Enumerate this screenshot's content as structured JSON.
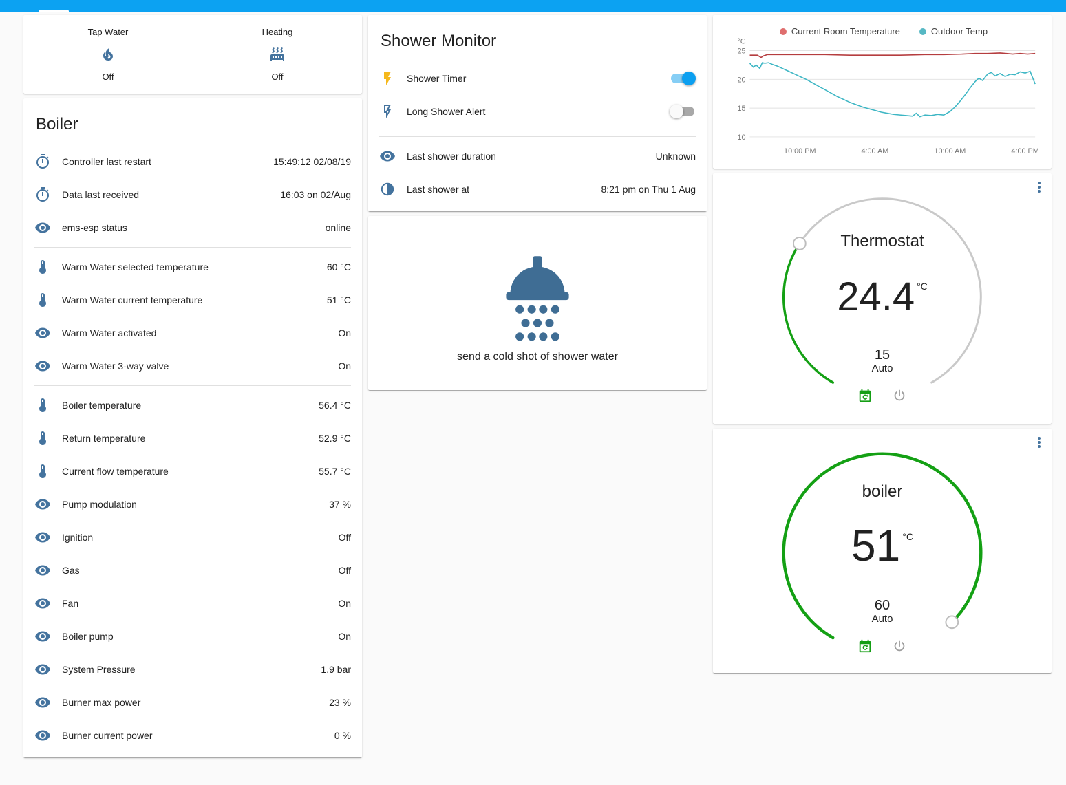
{
  "colors": {
    "header_blue": "#0ca2f2",
    "icon_blue": "#44739e",
    "toggle_on": "#0b9ff0",
    "toggle_on_track": "#86cef5",
    "gauge_green": "#14a014",
    "action_green": "#149e14",
    "bolt_yellow": "#f5b81c"
  },
  "glance_card": {
    "items": [
      {
        "name": "Tap Water",
        "icon": "fire",
        "state": "Off"
      },
      {
        "name": "Heating",
        "icon": "radiator",
        "state": "Off"
      }
    ]
  },
  "boiler_card": {
    "title": "Boiler",
    "sections": [
      {
        "rows": [
          {
            "icon": "timer",
            "label": "Controller last restart",
            "value": "15:49:12 02/08/19"
          },
          {
            "icon": "timer",
            "label": "Data last received",
            "value": "16:03 on 02/Aug"
          },
          {
            "icon": "eye",
            "label": "ems-esp status",
            "value": "online"
          }
        ]
      },
      {
        "rows": [
          {
            "icon": "thermometer",
            "label": "Warm Water selected temperature",
            "value": "60 °C"
          },
          {
            "icon": "thermometer",
            "label": "Warm Water current temperature",
            "value": "51 °C"
          },
          {
            "icon": "eye",
            "label": "Warm Water activated",
            "value": "On"
          },
          {
            "icon": "eye",
            "label": "Warm Water 3-way valve",
            "value": "On"
          }
        ]
      },
      {
        "rows": [
          {
            "icon": "thermometer",
            "label": "Boiler temperature",
            "value": "56.4 °C"
          },
          {
            "icon": "thermometer",
            "label": "Return temperature",
            "value": "52.9 °C"
          },
          {
            "icon": "thermometer",
            "label": "Current flow temperature",
            "value": "55.7 °C"
          },
          {
            "icon": "eye",
            "label": "Pump modulation",
            "value": "37 %"
          },
          {
            "icon": "eye",
            "label": "Ignition",
            "value": "Off"
          },
          {
            "icon": "eye",
            "label": "Gas",
            "value": "Off"
          },
          {
            "icon": "eye",
            "label": "Fan",
            "value": "On"
          },
          {
            "icon": "eye",
            "label": "Boiler pump",
            "value": "On"
          },
          {
            "icon": "eye",
            "label": "System Pressure",
            "value": "1.9 bar"
          },
          {
            "icon": "eye",
            "label": "Burner max power",
            "value": "23 %"
          },
          {
            "icon": "eye",
            "label": "Burner current power",
            "value": "0 %"
          }
        ]
      }
    ]
  },
  "shower_monitor": {
    "title": "Shower Monitor",
    "toggles": [
      {
        "icon": "flash",
        "icon_color": "#f5b81c",
        "label": "Shower Timer",
        "on": true
      },
      {
        "icon": "flash-outline",
        "label": "Long Shower Alert",
        "on": false
      }
    ],
    "info_rows": [
      {
        "icon": "eye",
        "label": "Last shower duration",
        "value": "Unknown"
      },
      {
        "icon": "clock-half",
        "label": "Last shower at",
        "value": "8:21 pm on Thu 1 Aug"
      }
    ]
  },
  "shower_card": {
    "caption": "send a cold shot of shower water"
  },
  "chart_data": {
    "type": "line",
    "title": "",
    "xlabel": "",
    "ylabel": "°C",
    "ylim": [
      9.5,
      25.8
    ],
    "yticks": [
      10,
      15,
      20,
      25
    ],
    "xlim": [
      0,
      22.8
    ],
    "xticks": [
      4,
      10,
      16,
      22
    ],
    "xtick_labels": [
      "10:00 PM",
      "4:00 AM",
      "10:00 AM",
      "4:00 PM"
    ],
    "grid": "horizontal",
    "legend_position": "top",
    "series": [
      {
        "name": "Current Room Temperature",
        "color": "#b53d3f",
        "dot_color": "#df6e6e",
        "x": [
          0,
          0.6,
          0.9,
          1.1,
          1.4,
          2,
          4,
          6,
          8,
          10,
          12,
          14,
          15.5,
          17,
          18,
          19,
          20,
          20.5,
          21,
          21.6,
          22.2,
          22.8
        ],
        "y": [
          24.2,
          24.2,
          23.8,
          24.1,
          24.3,
          24.3,
          24.3,
          24.3,
          24.2,
          24.2,
          24.2,
          24.3,
          24.3,
          24.4,
          24.5,
          24.5,
          24.6,
          24.5,
          24.4,
          24.5,
          24.4,
          24.5
        ]
      },
      {
        "name": "Outdoor Temp",
        "color": "#3db6c4",
        "dot_color": "#56b8c4",
        "x": [
          0,
          0.3,
          0.5,
          0.8,
          1.0,
          1.2,
          1.5,
          1.8,
          2.2,
          2.6,
          3.0,
          3.5,
          4.0,
          4.5,
          5.0,
          5.5,
          6.0,
          6.5,
          7.0,
          7.5,
          8.0,
          8.5,
          9.0,
          9.5,
          10.0,
          10.5,
          11.0,
          11.5,
          12.0,
          12.5,
          13.0,
          13.3,
          13.6,
          14.0,
          14.5,
          15.0,
          15.5,
          16.0,
          16.4,
          16.8,
          17.2,
          17.6,
          18.0,
          18.3,
          18.6,
          19.0,
          19.3,
          19.6,
          20.0,
          20.4,
          20.8,
          21.2,
          21.6,
          22.0,
          22.4,
          22.8
        ],
        "y": [
          22.8,
          22.1,
          22.5,
          21.9,
          22.9,
          22.8,
          22.9,
          22.6,
          22.3,
          21.9,
          21.5,
          21.0,
          20.5,
          20.0,
          19.4,
          18.8,
          18.2,
          17.6,
          17.0,
          16.5,
          16.0,
          15.6,
          15.2,
          14.9,
          14.6,
          14.3,
          14.1,
          13.9,
          13.8,
          13.7,
          13.6,
          14.1,
          13.5,
          13.8,
          13.7,
          13.9,
          13.8,
          14.4,
          15.2,
          16.2,
          17.3,
          18.5,
          19.6,
          20.2,
          19.8,
          20.9,
          21.2,
          20.6,
          21.0,
          20.5,
          20.9,
          20.8,
          21.3,
          21.1,
          21.4,
          19.2
        ]
      }
    ]
  },
  "thermostat_card": {
    "title": "Thermostat",
    "value": "24.4",
    "unit": "°C",
    "setpoint": "15",
    "mode": "Auto"
  },
  "boiler_gauge_card": {
    "title": "boiler",
    "value": "51",
    "unit": "°C",
    "setpoint": "60",
    "mode": "Auto"
  }
}
